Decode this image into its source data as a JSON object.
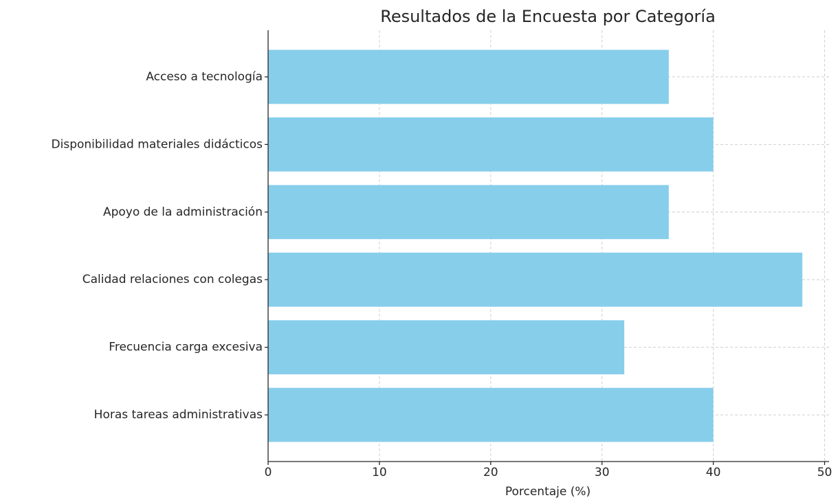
{
  "chart_data": {
    "type": "barh",
    "title": "Resultados de la Encuesta por Categoría",
    "xlabel": "Porcentaje (%)",
    "categories": [
      "Acceso a tecnología",
      "Disponibilidad materiales didácticos",
      "Apoyo de la administración",
      "Calidad relaciones con colegas",
      "Frecuencia carga excesiva",
      "Horas tareas administrativas"
    ],
    "values": [
      36,
      40,
      36,
      48,
      32,
      40
    ],
    "color": "#87ceeb",
    "xlim": [
      0,
      50.4
    ],
    "xticks": [
      0,
      10,
      20,
      30,
      40,
      50
    ],
    "grid": true
  }
}
